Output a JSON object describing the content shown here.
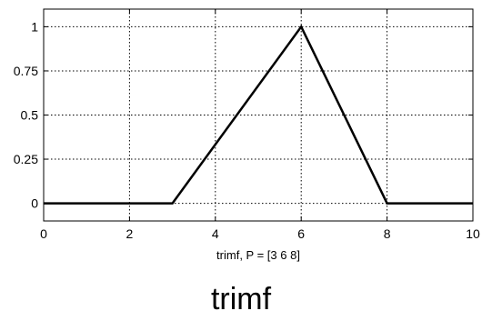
{
  "chart_data": {
    "type": "line",
    "xlabel": "trimf, P = [3 6 8]",
    "xlim": [
      0,
      10
    ],
    "ylim": [
      -0.1,
      1.1
    ],
    "xticks": [
      0,
      2,
      4,
      6,
      8,
      10
    ],
    "xtick_labels": [
      "0",
      "2",
      "4",
      "6",
      "8",
      "10"
    ],
    "yticks": [
      0,
      0.25,
      0.5,
      0.75,
      1
    ],
    "ytick_labels": [
      "0",
      "0.25",
      "0.5",
      "0.75",
      "1"
    ],
    "grid": true,
    "series": [
      {
        "x": [
          0,
          3,
          6,
          8,
          10
        ],
        "y": [
          0,
          0,
          1,
          0,
          0
        ],
        "color": "#000000"
      }
    ]
  },
  "caption": "trimf"
}
